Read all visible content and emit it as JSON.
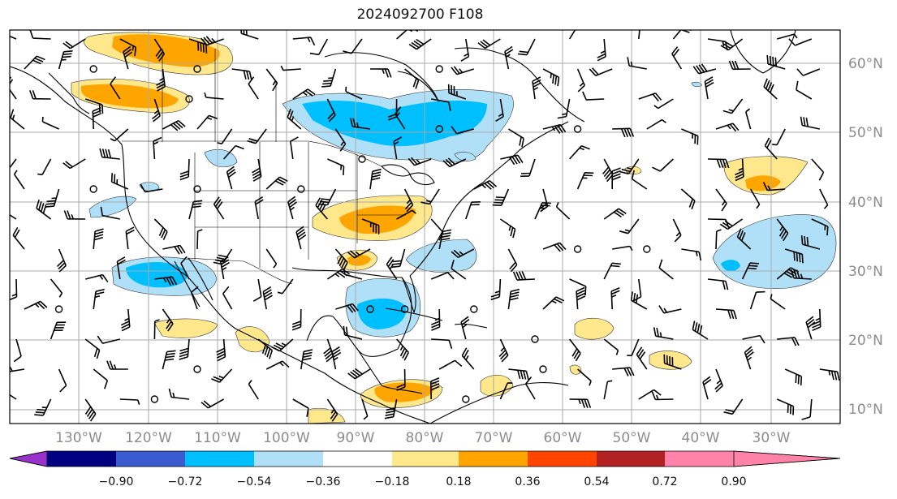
{
  "title": "2024092700 F108",
  "lat_labels": [
    "60°N",
    "50°N",
    "40°N",
    "30°N",
    "20°N",
    "10°N"
  ],
  "lon_labels": [
    "130°W",
    "120°W",
    "110°W",
    "100°W",
    "90°W",
    "80°W",
    "70°W",
    "60°W",
    "50°W",
    "40°W",
    "30°W"
  ],
  "colorbar": {
    "labels": [
      "−0.90",
      "−0.72",
      "−0.54",
      "−0.36",
      "−0.18",
      "0.18",
      "0.36",
      "0.54",
      "0.72",
      "0.90"
    ],
    "colors": [
      "#9932cc",
      "#000080",
      "#3b5bd0",
      "#00bfff",
      "#b0e0f8",
      "#ffffff",
      "#ffe88c",
      "#ffa500",
      "#ff4500",
      "#b22222",
      "#ff82ab"
    ]
  },
  "fill_colors": {
    "light_blue": "#b0e0f8",
    "blue": "#00bfff",
    "light_yellow": "#ffe88c",
    "orange": "#ffa500"
  }
}
